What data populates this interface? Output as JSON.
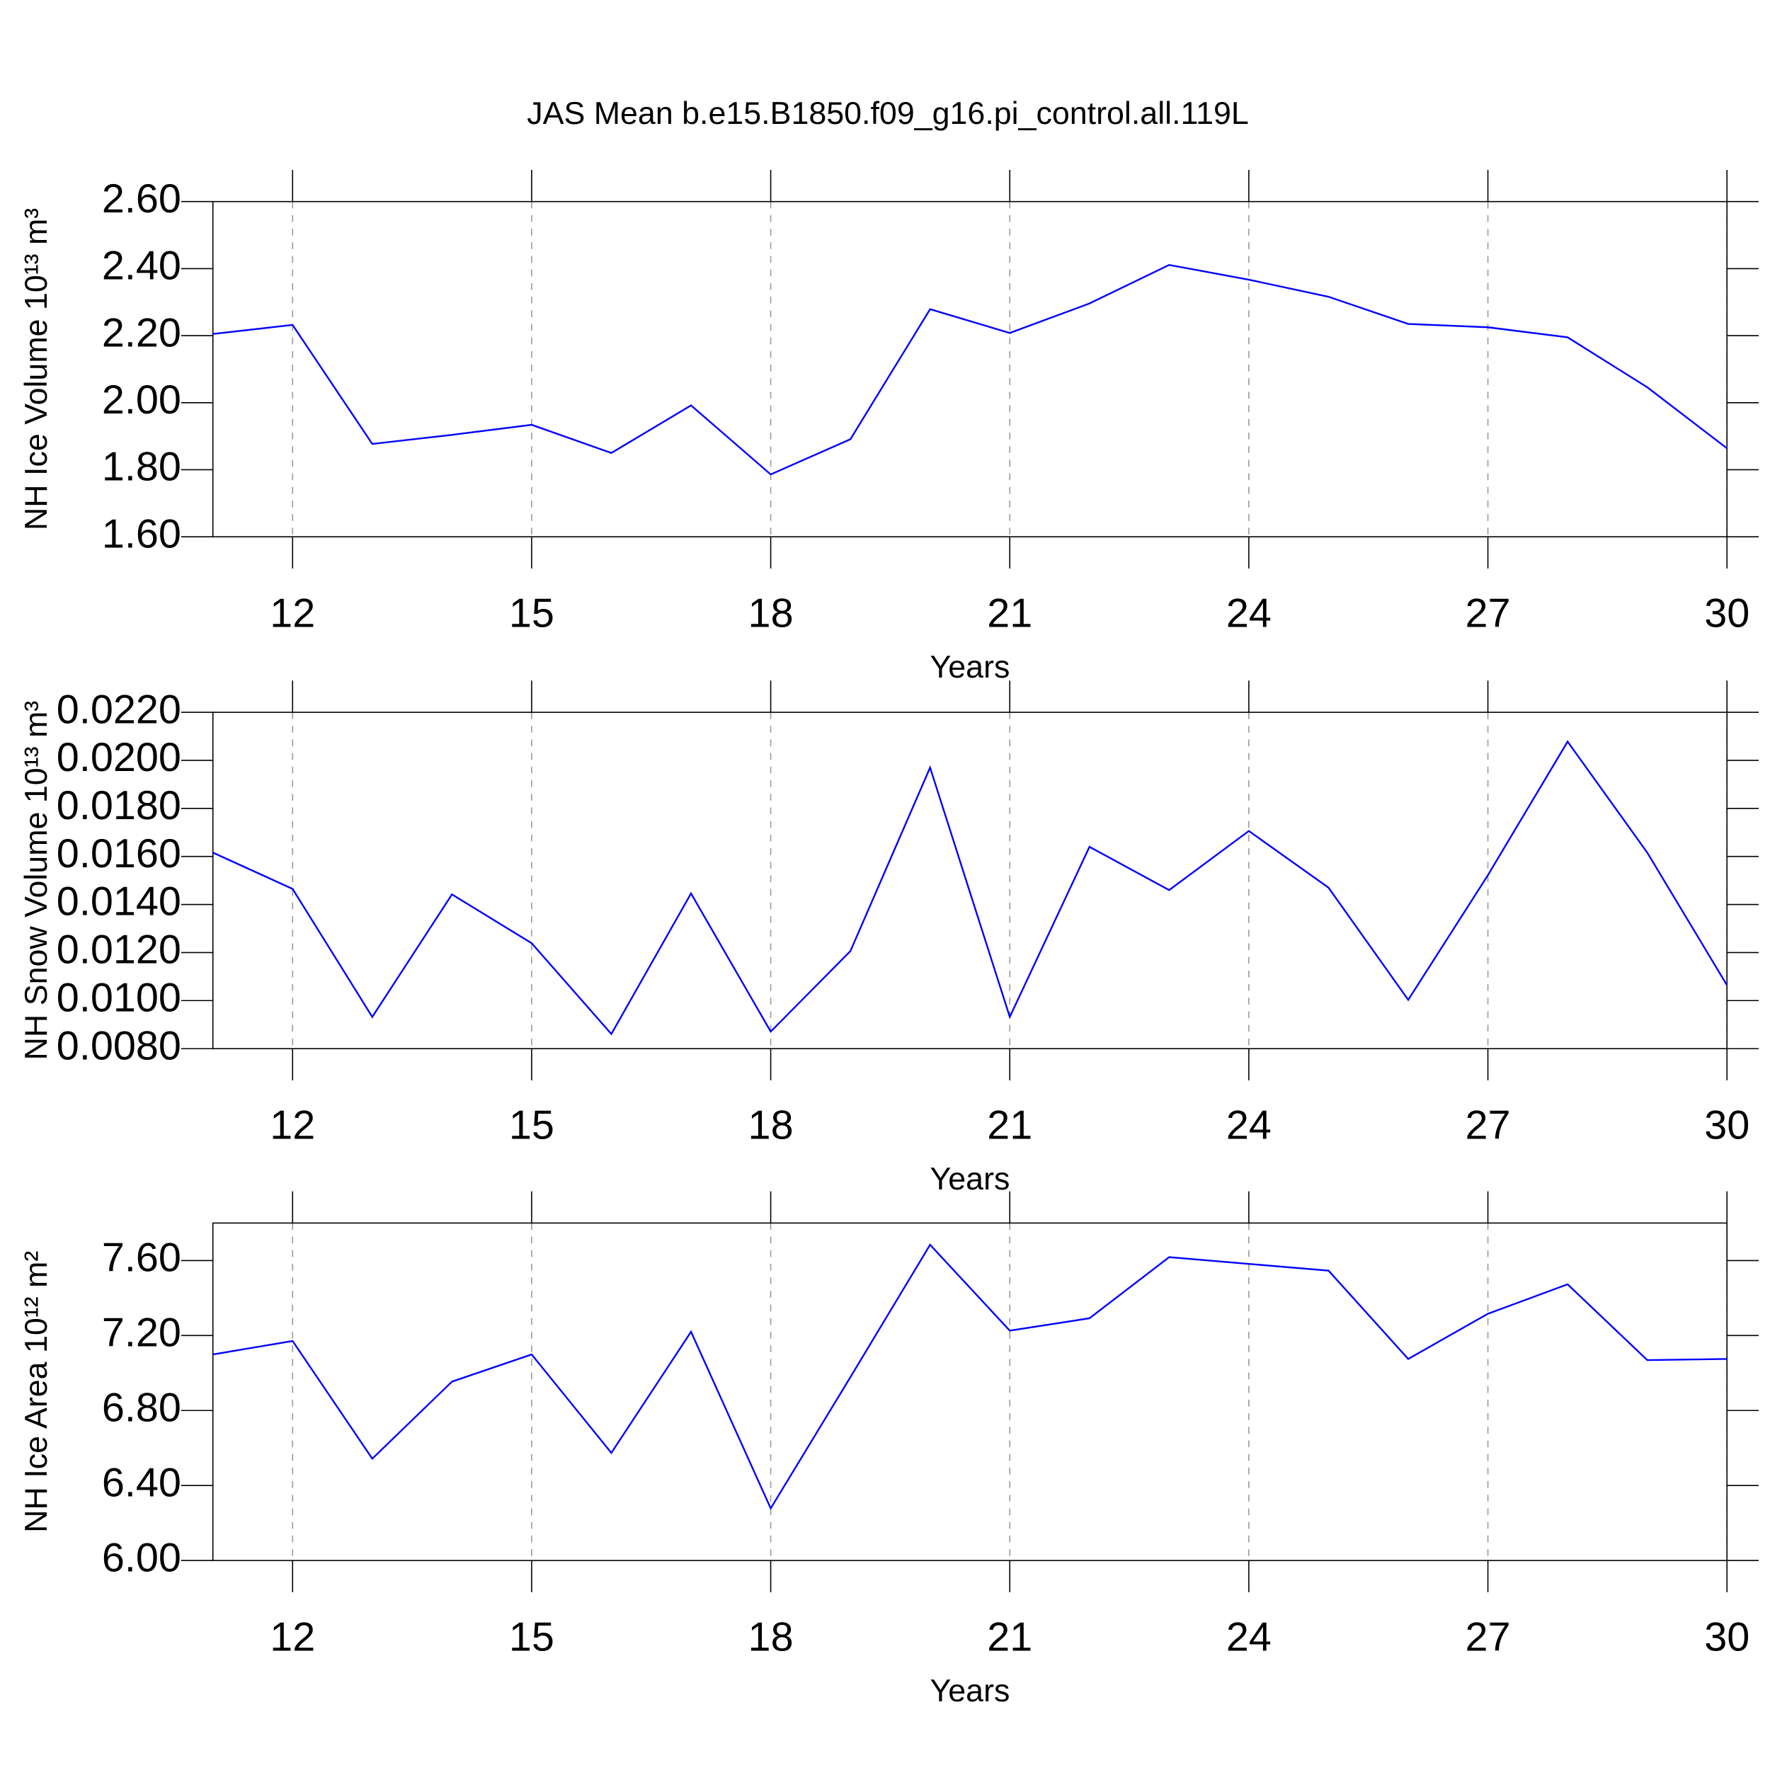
{
  "chart_data": [
    {
      "type": "line",
      "title": "JAS Mean b.e15.B1850.f09_g16.pi_control.all.119L",
      "xlabel": "Years",
      "ylabel": "NH Ice Volume 10¹³ m³",
      "x": [
        11,
        12,
        13,
        14,
        15,
        16,
        17,
        18,
        19,
        20,
        21,
        22,
        23,
        24,
        25,
        26,
        27,
        28,
        29,
        30
      ],
      "values": [
        2.205,
        2.232,
        1.877,
        1.904,
        1.934,
        1.85,
        1.992,
        1.786,
        1.891,
        2.279,
        2.208,
        2.296,
        2.411,
        2.367,
        2.316,
        2.235,
        2.225,
        2.195,
        2.046,
        1.864
      ],
      "color": "#0000ff",
      "xlim": [
        11,
        30
      ],
      "xticks": [
        12,
        15,
        18,
        21,
        24,
        27,
        30
      ],
      "grid": true,
      "ylim": [
        1.6,
        2.6
      ],
      "yticks": [
        {
          "value": 1.6,
          "label": "1.60"
        },
        {
          "value": 1.8,
          "label": "1.80"
        },
        {
          "value": 2.0,
          "label": "2.00"
        },
        {
          "value": 2.2,
          "label": "2.20"
        },
        {
          "value": 2.4,
          "label": "2.40"
        },
        {
          "value": 2.6,
          "label": "2.60"
        }
      ]
    },
    {
      "type": "line",
      "xlabel": "Years",
      "ylabel": "NH Snow Volume 10¹³ m³",
      "x": [
        11,
        12,
        13,
        14,
        15,
        16,
        17,
        18,
        19,
        20,
        21,
        22,
        23,
        24,
        25,
        26,
        27,
        28,
        29,
        30
      ],
      "values": [
        0.01616,
        0.01465,
        0.00932,
        0.01442,
        0.01239,
        0.00861,
        0.01446,
        0.00871,
        0.01206,
        0.0197,
        0.00932,
        0.0164,
        0.0146,
        0.01706,
        0.0147,
        0.01003,
        0.01522,
        0.02078,
        0.01616,
        0.01064
      ],
      "color": "#0000ff",
      "xlim": [
        11,
        30
      ],
      "xticks": [
        12,
        15,
        18,
        21,
        24,
        27,
        30
      ],
      "grid": true,
      "ylim": [
        0.008,
        0.022
      ],
      "yticks": [
        {
          "value": 0.008,
          "label": "0.0080"
        },
        {
          "value": 0.01,
          "label": "0.0100"
        },
        {
          "value": 0.012,
          "label": "0.0120"
        },
        {
          "value": 0.014,
          "label": "0.0140"
        },
        {
          "value": 0.016,
          "label": "0.0160"
        },
        {
          "value": 0.018,
          "label": "0.0180"
        },
        {
          "value": 0.02,
          "label": "0.0200"
        },
        {
          "value": 0.022,
          "label": "0.0220"
        }
      ]
    },
    {
      "type": "line",
      "xlabel": "Years",
      "ylabel": "NH Ice Area 10¹² m²",
      "x": [
        11,
        12,
        13,
        14,
        15,
        16,
        17,
        18,
        19,
        20,
        21,
        22,
        23,
        24,
        25,
        26,
        27,
        28,
        29,
        30
      ],
      "values": [
        7.099,
        7.171,
        6.543,
        6.954,
        7.099,
        6.574,
        7.22,
        6.278,
        6.978,
        7.684,
        7.226,
        7.292,
        7.618,
        7.582,
        7.546,
        7.075,
        7.316,
        7.473,
        7.069,
        7.075
      ],
      "color": "#0000ff",
      "xlim": [
        11,
        30
      ],
      "xticks": [
        12,
        15,
        18,
        21,
        24,
        27,
        30
      ],
      "grid": true,
      "ylim": [
        6.0,
        7.8
      ],
      "yticks": [
        {
          "value": 6.0,
          "label": "6.00"
        },
        {
          "value": 6.4,
          "label": "6.40"
        },
        {
          "value": 6.8,
          "label": "6.80"
        },
        {
          "value": 7.2,
          "label": "7.20"
        },
        {
          "value": 7.6,
          "label": "7.60"
        }
      ]
    }
  ]
}
